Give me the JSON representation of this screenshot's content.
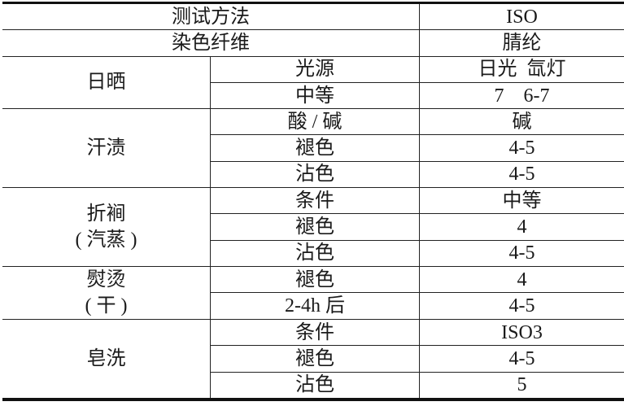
{
  "header": [
    {
      "label": "测试方法",
      "value": "ISO"
    },
    {
      "label": "染色纤维",
      "value": "腈纶"
    }
  ],
  "groups": [
    {
      "name": "日晒",
      "name2": "",
      "rows": [
        {
          "item": "光源",
          "value": "日光  氙灯"
        },
        {
          "item": "中等",
          "value": "7    6-7"
        }
      ]
    },
    {
      "name": "汗渍",
      "name2": "",
      "rows": [
        {
          "item": "酸 / 碱",
          "value": "碱"
        },
        {
          "item": "褪色",
          "value": "4-5"
        },
        {
          "item": "沾色",
          "value": "4-5"
        }
      ]
    },
    {
      "name": "折裥",
      "name2": "( 汽蒸 )",
      "rows": [
        {
          "item": "条件",
          "value": "中等"
        },
        {
          "item": "褪色",
          "value": "4"
        },
        {
          "item": "沾色",
          "value": "4-5"
        }
      ]
    },
    {
      "name": "熨烫",
      "name2": "( 干 )",
      "rows": [
        {
          "item": "褪色",
          "value": "4"
        },
        {
          "item": "2-4h 后",
          "value": "4-5"
        }
      ]
    },
    {
      "name": "皂洗",
      "name2": "",
      "rows": [
        {
          "item": "条件",
          "value": "ISO3"
        },
        {
          "item": "褪色",
          "value": "4-5"
        },
        {
          "item": "沾色",
          "value": "5"
        }
      ]
    }
  ]
}
